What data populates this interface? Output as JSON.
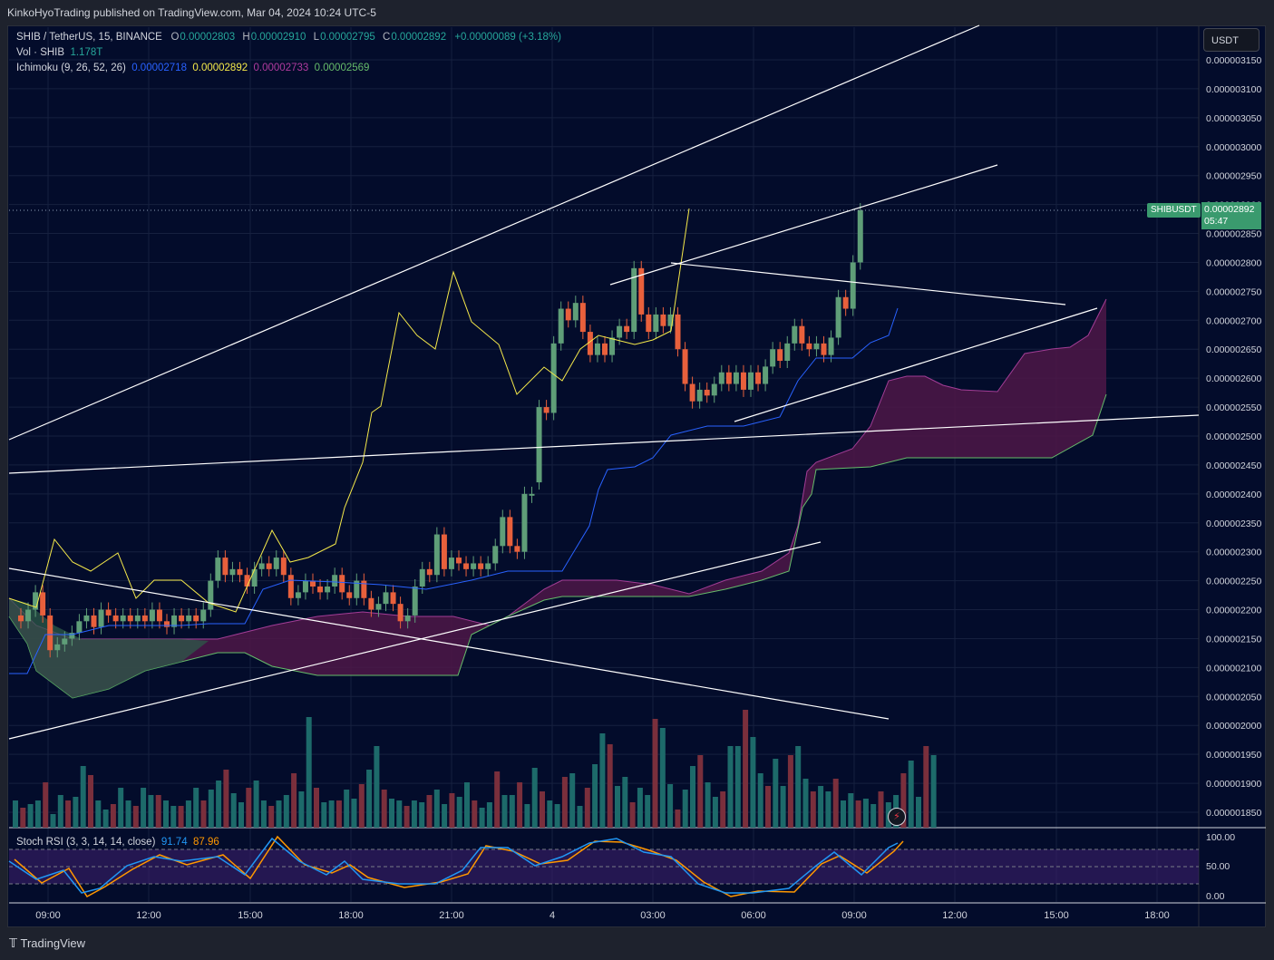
{
  "header": {
    "published": "KinkoHyoTrading published on TradingView.com, Mar 04, 2024 10:24 UTC-5"
  },
  "legend": {
    "symbol": "SHIB / TetherUS, 15, BINANCE",
    "o_label": "O",
    "o": "0.00002803",
    "h_label": "H",
    "h": "0.00002910",
    "l_label": "L",
    "l": "0.00002795",
    "c_label": "C",
    "c": "0.00002892",
    "change": "+0.00000089 (+3.18%)",
    "vol_label": "Vol · SHIB",
    "vol": "1.178T",
    "ichimoku_label": "Ichimoku (9, 26, 52, 26)",
    "ichi1": "0.00002718",
    "ichi2": "0.00002892",
    "ichi3": "0.00002733",
    "ichi4": "0.00002569",
    "stoch_label": "Stoch RSI (3, 3, 14, 14, close)",
    "stoch_k": "91.74",
    "stoch_d": "87.96"
  },
  "price_axis": {
    "currency": "USDT",
    "ticks": [
      "0.000003150",
      "0.000003100",
      "0.000003050",
      "0.000003000",
      "0.000002950",
      "0.000002900",
      "0.000002850",
      "0.000002800",
      "0.000002750",
      "0.000002700",
      "0.000002650",
      "0.000002600",
      "0.000002550",
      "0.000002500",
      "0.000002450",
      "0.000002400",
      "0.000002350",
      "0.000002300",
      "0.000002250",
      "0.000002200",
      "0.000002150",
      "0.000002100",
      "0.000002050",
      "0.000002000",
      "0.000001950",
      "0.000001900",
      "0.000001850"
    ],
    "symbol_tag": "SHIBUSDT",
    "last_price": "0.00002892",
    "countdown": "05:47"
  },
  "stoch_axis": {
    "ticks": [
      "100.00",
      "50.00",
      "0.00"
    ]
  },
  "time_axis": {
    "labels": [
      "09:00",
      "12:00",
      "15:00",
      "18:00",
      "21:00",
      "4",
      "03:00",
      "06:00",
      "09:00",
      "12:00",
      "15:00",
      "18:00"
    ]
  },
  "footer": {
    "brand": "TradingView"
  },
  "colors": {
    "up": "#26a69a",
    "down": "#ef5350",
    "background": "#030c2b",
    "tenkan": "#2962ff",
    "lagging": "#f5e94a",
    "cloud": "#5b1e5a"
  },
  "chart_data": {
    "type": "candlestick",
    "title": "SHIB / TetherUS, 15, BINANCE",
    "price_unit_note": "axis values as printed",
    "ylim": [
      1.8e-06,
      3.18e-06
    ],
    "times": [
      "09:00",
      "12:00",
      "15:00",
      "18:00",
      "21:00",
      "4",
      "03:00",
      "06:00",
      "09:00"
    ],
    "candles": [
      {
        "o": 2.19e-06,
        "c": 2.18e-06
      },
      {
        "o": 2.18e-06,
        "c": 2.2e-06
      },
      {
        "o": 2.2e-06,
        "c": 2.23e-06
      },
      {
        "o": 2.23e-06,
        "c": 2.19e-06
      },
      {
        "o": 2.19e-06,
        "c": 2.13e-06
      },
      {
        "o": 2.13e-06,
        "c": 2.14e-06
      },
      {
        "o": 2.14e-06,
        "c": 2.15e-06
      },
      {
        "o": 2.15e-06,
        "c": 2.16e-06
      },
      {
        "o": 2.16e-06,
        "c": 2.18e-06
      },
      {
        "o": 2.18e-06,
        "c": 2.19e-06
      },
      {
        "o": 2.19e-06,
        "c": 2.17e-06
      },
      {
        "o": 2.17e-06,
        "c": 2.2e-06
      },
      {
        "o": 2.2e-06,
        "c": 2.19e-06
      },
      {
        "o": 2.19e-06,
        "c": 2.18e-06
      },
      {
        "o": 2.18e-06,
        "c": 2.19e-06
      },
      {
        "o": 2.19e-06,
        "c": 2.18e-06
      },
      {
        "o": 2.18e-06,
        "c": 2.19e-06
      },
      {
        "o": 2.19e-06,
        "c": 2.18e-06
      },
      {
        "o": 2.18e-06,
        "c": 2.2e-06
      },
      {
        "o": 2.2e-06,
        "c": 2.18e-06
      },
      {
        "o": 2.18e-06,
        "c": 2.17e-06
      },
      {
        "o": 2.17e-06,
        "c": 2.19e-06
      },
      {
        "o": 2.19e-06,
        "c": 2.18e-06
      },
      {
        "o": 2.18e-06,
        "c": 2.19e-06
      },
      {
        "o": 2.19e-06,
        "c": 2.18e-06
      },
      {
        "o": 2.18e-06,
        "c": 2.2e-06
      },
      {
        "o": 2.2e-06,
        "c": 2.25e-06
      },
      {
        "o": 2.25e-06,
        "c": 2.29e-06
      },
      {
        "o": 2.29e-06,
        "c": 2.26e-06
      },
      {
        "o": 2.26e-06,
        "c": 2.27e-06
      },
      {
        "o": 2.27e-06,
        "c": 2.26e-06
      },
      {
        "o": 2.26e-06,
        "c": 2.24e-06
      },
      {
        "o": 2.24e-06,
        "c": 2.27e-06
      },
      {
        "o": 2.27e-06,
        "c": 2.28e-06
      },
      {
        "o": 2.28e-06,
        "c": 2.27e-06
      },
      {
        "o": 2.27e-06,
        "c": 2.29e-06
      },
      {
        "o": 2.29e-06,
        "c": 2.26e-06
      },
      {
        "o": 2.26e-06,
        "c": 2.22e-06
      },
      {
        "o": 2.22e-06,
        "c": 2.23e-06
      },
      {
        "o": 2.23e-06,
        "c": 2.25e-06
      },
      {
        "o": 2.25e-06,
        "c": 2.24e-06
      },
      {
        "o": 2.24e-06,
        "c": 2.23e-06
      },
      {
        "o": 2.23e-06,
        "c": 2.24e-06
      },
      {
        "o": 2.24e-06,
        "c": 2.26e-06
      },
      {
        "o": 2.26e-06,
        "c": 2.23e-06
      },
      {
        "o": 2.23e-06,
        "c": 2.22e-06
      },
      {
        "o": 2.22e-06,
        "c": 2.25e-06
      },
      {
        "o": 2.25e-06,
        "c": 2.22e-06
      },
      {
        "o": 2.22e-06,
        "c": 2.2e-06
      },
      {
        "o": 2.2e-06,
        "c": 2.21e-06
      },
      {
        "o": 2.21e-06,
        "c": 2.23e-06
      },
      {
        "o": 2.23e-06,
        "c": 2.21e-06
      },
      {
        "o": 2.21e-06,
        "c": 2.18e-06
      },
      {
        "o": 2.18e-06,
        "c": 2.19e-06
      },
      {
        "o": 2.19e-06,
        "c": 2.24e-06
      },
      {
        "o": 2.24e-06,
        "c": 2.27e-06
      },
      {
        "o": 2.27e-06,
        "c": 2.26e-06
      },
      {
        "o": 2.26e-06,
        "c": 2.33e-06
      },
      {
        "o": 2.33e-06,
        "c": 2.27e-06
      },
      {
        "o": 2.27e-06,
        "c": 2.29e-06
      },
      {
        "o": 2.29e-06,
        "c": 2.28e-06
      },
      {
        "o": 2.28e-06,
        "c": 2.27e-06
      },
      {
        "o": 2.27e-06,
        "c": 2.28e-06
      },
      {
        "o": 2.28e-06,
        "c": 2.27e-06
      },
      {
        "o": 2.27e-06,
        "c": 2.28e-06
      },
      {
        "o": 2.28e-06,
        "c": 2.31e-06
      },
      {
        "o": 2.31e-06,
        "c": 2.36e-06
      },
      {
        "o": 2.36e-06,
        "c": 2.31e-06
      },
      {
        "o": 2.31e-06,
        "c": 2.3e-06
      },
      {
        "o": 2.3e-06,
        "c": 2.4e-06
      },
      {
        "o": 2.4e-06,
        "c": 2.4e-06
      },
      {
        "o": 2.42e-06,
        "c": 2.55e-06
      },
      {
        "o": 2.55e-06,
        "c": 2.54e-06
      },
      {
        "o": 2.54e-06,
        "c": 2.66e-06
      },
      {
        "o": 2.66e-06,
        "c": 2.72e-06
      },
      {
        "o": 2.72e-06,
        "c": 2.7e-06
      },
      {
        "o": 2.7e-06,
        "c": 2.73e-06
      },
      {
        "o": 2.73e-06,
        "c": 2.68e-06
      },
      {
        "o": 2.68e-06,
        "c": 2.64e-06
      },
      {
        "o": 2.64e-06,
        "c": 2.66e-06
      },
      {
        "o": 2.66e-06,
        "c": 2.64e-06
      },
      {
        "o": 2.64e-06,
        "c": 2.67e-06
      },
      {
        "o": 2.67e-06,
        "c": 2.69e-06
      },
      {
        "o": 2.69e-06,
        "c": 2.68e-06
      },
      {
        "o": 2.68e-06,
        "c": 2.79e-06
      },
      {
        "o": 2.79e-06,
        "c": 2.71e-06
      },
      {
        "o": 2.71e-06,
        "c": 2.68e-06
      },
      {
        "o": 2.68e-06,
        "c": 2.71e-06
      },
      {
        "o": 2.71e-06,
        "c": 2.69e-06
      },
      {
        "o": 2.69e-06,
        "c": 2.71e-06
      },
      {
        "o": 2.71e-06,
        "c": 2.65e-06
      },
      {
        "o": 2.65e-06,
        "c": 2.59e-06
      },
      {
        "o": 2.59e-06,
        "c": 2.56e-06
      },
      {
        "o": 2.56e-06,
        "c": 2.58e-06
      },
      {
        "o": 2.58e-06,
        "c": 2.57e-06
      },
      {
        "o": 2.57e-06,
        "c": 2.59e-06
      },
      {
        "o": 2.59e-06,
        "c": 2.61e-06
      },
      {
        "o": 2.61e-06,
        "c": 2.59e-06
      },
      {
        "o": 2.59e-06,
        "c": 2.61e-06
      },
      {
        "o": 2.61e-06,
        "c": 2.58e-06
      },
      {
        "o": 2.58e-06,
        "c": 2.61e-06
      },
      {
        "o": 2.61e-06,
        "c": 2.59e-06
      },
      {
        "o": 2.59e-06,
        "c": 2.62e-06
      },
      {
        "o": 2.62e-06,
        "c": 2.65e-06
      },
      {
        "o": 2.65e-06,
        "c": 2.63e-06
      },
      {
        "o": 2.63e-06,
        "c": 2.66e-06
      },
      {
        "o": 2.66e-06,
        "c": 2.69e-06
      },
      {
        "o": 2.69e-06,
        "c": 2.66e-06
      },
      {
        "o": 2.66e-06,
        "c": 2.65e-06
      },
      {
        "o": 2.65e-06,
        "c": 2.66e-06
      },
      {
        "o": 2.66e-06,
        "c": 2.64e-06
      },
      {
        "o": 2.64e-06,
        "c": 2.67e-06
      },
      {
        "o": 2.67e-06,
        "c": 2.74e-06
      },
      {
        "o": 2.74e-06,
        "c": 2.72e-06
      },
      {
        "o": 2.72e-06,
        "c": 2.8e-06
      },
      {
        "o": 2.8e-06,
        "c": 2.89e-06
      }
    ],
    "volume_unit": "SHIB",
    "volume_last": "1.178T",
    "stoch_rsi": {
      "k_last": 91.74,
      "d_last": 87.96,
      "ylim": [
        0,
        100
      ]
    }
  }
}
